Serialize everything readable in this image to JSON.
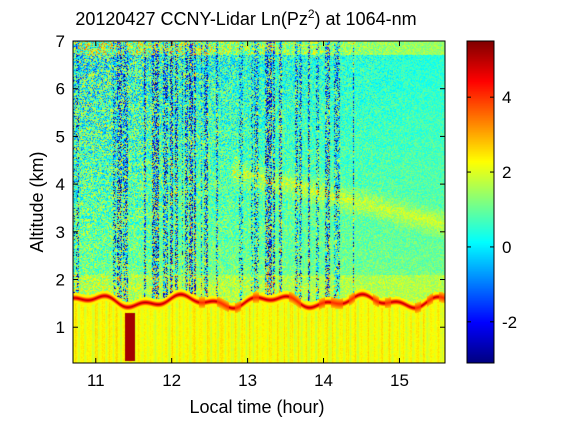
{
  "chart_data": {
    "type": "heatmap",
    "title": {
      "prefix": "20120427 CCNY-Lidar Ln(Pz",
      "superscript": "2",
      "suffix": ") at 1064-nm"
    },
    "xlabel": "Local time (hour)",
    "ylabel": "Altitude (km)",
    "xlim": [
      10.7,
      15.6
    ],
    "ylim": [
      0.25,
      7.0
    ],
    "x_ticks": [
      11,
      12,
      13,
      14,
      15
    ],
    "y_ticks": [
      1,
      2,
      3,
      4,
      5,
      6,
      7
    ],
    "colorbar": {
      "range": [
        -3.1,
        5.5
      ],
      "ticks": [
        -2,
        0,
        2,
        4
      ],
      "colormap": "jet"
    },
    "layers": {
      "boundary_layer_top_km": 1.55,
      "boundary_layer_value": 2.2,
      "boundary_layer_top_edge_value": 5.2,
      "free_troposphere_value": 0.4,
      "residual_layer_km": [
        3.2,
        4.2
      ],
      "residual_layer_value": 1.3,
      "lowest_plume_time": 11.45,
      "lowest_plume_bottom_km": 0.3
    },
    "colors": {
      "saturated_high": "#800000",
      "noise_low": "#00008f",
      "boundary_layer": "#e6ef24"
    }
  }
}
